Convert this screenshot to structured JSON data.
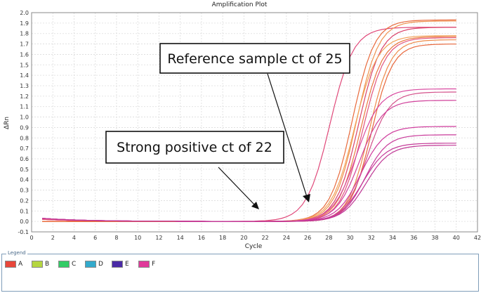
{
  "chart_data": {
    "type": "line",
    "title": "Amplification Plot",
    "xlabel": "Cycle",
    "ylabel": "ΔRn",
    "xlim": [
      0,
      42
    ],
    "ylim": [
      -0.1,
      2.0
    ],
    "xticks": [
      "0",
      "2",
      "4",
      "6",
      "8",
      "10",
      "12",
      "14",
      "16",
      "18",
      "20",
      "22",
      "24",
      "26",
      "28",
      "30",
      "32",
      "34",
      "36",
      "38",
      "40",
      "42"
    ],
    "yticks": [
      "-0.1",
      "0.0",
      "0.1",
      "0.2",
      "0.3",
      "0.4",
      "0.5",
      "0.6",
      "0.7",
      "0.8",
      "0.9",
      "1.0",
      "1.1",
      "1.2",
      "1.3",
      "1.4",
      "1.5",
      "1.6",
      "1.7",
      "1.8",
      "1.9",
      "2.0"
    ],
    "grid": true,
    "series": [
      {
        "group": "F",
        "color": "#e0497a",
        "plateau": 1.86,
        "mid": 28.1,
        "slope": 1.1,
        "start": 0.02
      },
      {
        "group": "A",
        "color": "#e86a3c",
        "plateau": 1.93,
        "mid": 30.2,
        "slope": 1.05,
        "start": 0.0
      },
      {
        "group": "A",
        "color": "#ef9250",
        "plateau": 1.92,
        "mid": 30.6,
        "slope": 1.05,
        "start": 0.0
      },
      {
        "group": "F",
        "color": "#d9436b",
        "plateau": 1.86,
        "mid": 30.8,
        "slope": 1.05,
        "start": 0.02
      },
      {
        "group": "A",
        "color": "#f2a35a",
        "plateau": 1.78,
        "mid": 30.4,
        "slope": 1.08,
        "start": 0.0
      },
      {
        "group": "A",
        "color": "#e97840",
        "plateau": 1.77,
        "mid": 31.0,
        "slope": 1.05,
        "start": 0.0
      },
      {
        "group": "F",
        "color": "#e4557e",
        "plateau": 1.76,
        "mid": 31.2,
        "slope": 1.05,
        "start": 0.02
      },
      {
        "group": "A",
        "color": "#ee8a49",
        "plateau": 1.74,
        "mid": 31.8,
        "slope": 1.0,
        "start": 0.0
      },
      {
        "group": "A",
        "color": "#e8663a",
        "plateau": 1.7,
        "mid": 32.0,
        "slope": 1.0,
        "start": 0.0
      },
      {
        "group": "F",
        "color": "#d94aa0",
        "plateau": 1.27,
        "mid": 30.6,
        "slope": 1.1,
        "start": 0.03
      },
      {
        "group": "F",
        "color": "#d4508a",
        "plateau": 1.24,
        "mid": 31.6,
        "slope": 1.05,
        "start": 0.03
      },
      {
        "group": "F",
        "color": "#d0409a",
        "plateau": 1.16,
        "mid": 30.9,
        "slope": 1.1,
        "start": 0.03
      },
      {
        "group": "F",
        "color": "#cf3a9c",
        "plateau": 0.91,
        "mid": 31.0,
        "slope": 1.1,
        "start": 0.03
      },
      {
        "group": "F",
        "color": "#c93a9a",
        "plateau": 0.83,
        "mid": 31.4,
        "slope": 1.05,
        "start": 0.03
      },
      {
        "group": "F",
        "color": "#c43a98",
        "plateau": 0.75,
        "mid": 31.2,
        "slope": 1.1,
        "start": 0.03
      },
      {
        "group": "F",
        "color": "#c03896",
        "plateau": 0.73,
        "mid": 31.5,
        "slope": 1.1,
        "start": 0.03
      }
    ],
    "annotations": [
      {
        "text": "Reference sample ct of 25"
      },
      {
        "text": "Strong positive ct of 22"
      }
    ]
  },
  "legend": {
    "title": "Legend",
    "items": [
      {
        "label": "A",
        "color": "#e8463a"
      },
      {
        "label": "B",
        "color": "#b5d640"
      },
      {
        "label": "C",
        "color": "#33cc66"
      },
      {
        "label": "D",
        "color": "#33aacc"
      },
      {
        "label": "E",
        "color": "#4a2aa6"
      },
      {
        "label": "F",
        "color": "#e03a9a"
      }
    ]
  }
}
